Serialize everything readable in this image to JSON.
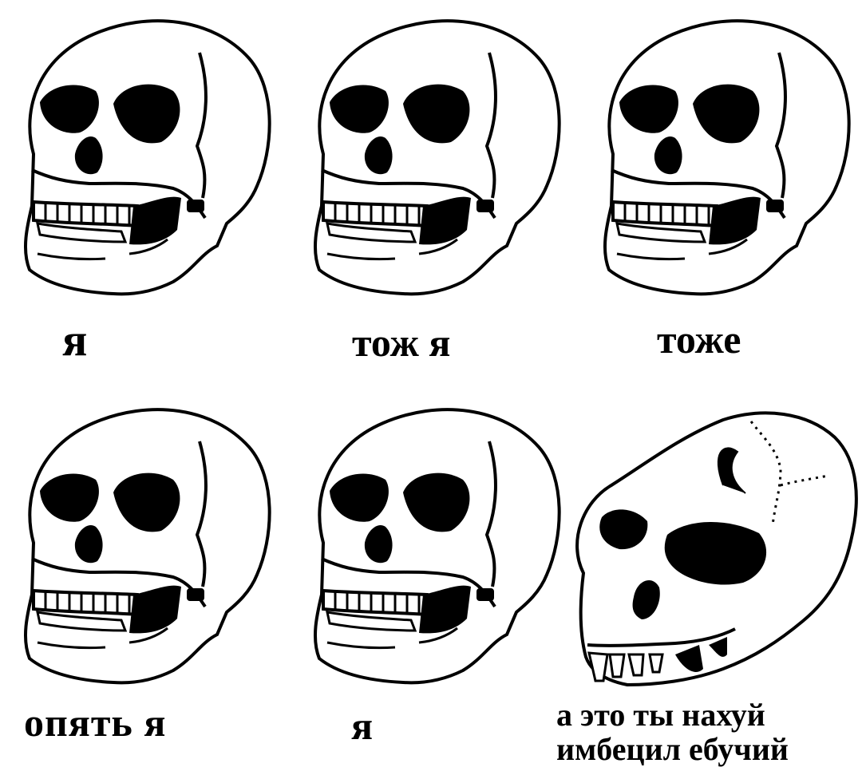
{
  "panels": [
    {
      "caption": "я",
      "icon": "human-skull-icon"
    },
    {
      "caption": "тож я",
      "icon": "human-skull-icon"
    },
    {
      "caption": "тоже",
      "icon": "human-skull-icon"
    },
    {
      "caption": "опять я",
      "icon": "human-skull-icon"
    },
    {
      "caption": "я",
      "icon": "human-skull-icon"
    },
    {
      "caption_line1": "а это ты нахуй",
      "caption_line2": "имбецил ебучий",
      "icon": "ape-skull-icon"
    }
  ],
  "colors": {
    "background": "#ffffff",
    "ink": "#000000",
    "bone": "#ffffff"
  }
}
